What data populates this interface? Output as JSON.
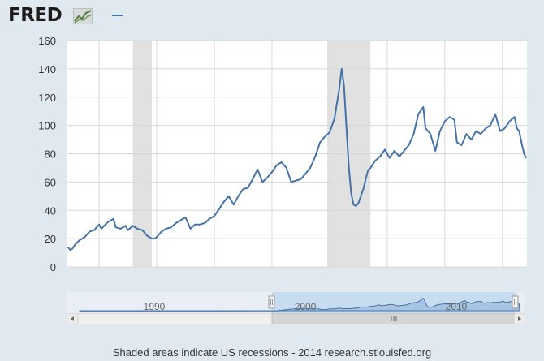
{
  "header": {
    "logo_text": "FRED",
    "logo_icon": "chart-logo-icon"
  },
  "colors": {
    "series": "#4572a7",
    "recession": "#e1e1e1",
    "plot_bg": "#ffffff",
    "page_bg": "#e1e9f0",
    "grid": "#d8d8d8",
    "navigator_fill": "#a6c5e3",
    "navigator_selected": "#c8dcef",
    "scrollbar": "#d5d5d5"
  },
  "chart_data": {
    "type": "line",
    "title": "",
    "xlabel": "",
    "ylabel": "",
    "xlim": [
      1998.9,
      2014.85
    ],
    "ylim": [
      0,
      160
    ],
    "yticks": [
      0,
      20,
      40,
      60,
      80,
      100,
      120,
      140,
      160
    ],
    "xticks": [
      2000,
      2002,
      2004,
      2006,
      2008,
      2010,
      2012,
      2014
    ],
    "grid": true,
    "legend": "top-left",
    "recessions": [
      [
        2001.17,
        2001.83
      ],
      [
        2007.92,
        2009.42
      ]
    ],
    "series": [
      {
        "x": [
          1998.92,
          1999.0,
          1999.08,
          1999.17,
          1999.33,
          1999.5,
          1999.67,
          1999.83,
          2000.0,
          2000.08,
          2000.17,
          2000.33,
          2000.5,
          2000.58,
          2000.75,
          2000.92,
          2001.0,
          2001.17,
          2001.33,
          2001.5,
          2001.67,
          2001.83,
          2001.92,
          2002.0,
          2002.17,
          2002.33,
          2002.5,
          2002.67,
          2002.83,
          2003.0,
          2003.17,
          2003.33,
          2003.5,
          2003.67,
          2003.83,
          2004.0,
          2004.17,
          2004.33,
          2004.5,
          2004.67,
          2004.83,
          2005.0,
          2005.17,
          2005.33,
          2005.5,
          2005.67,
          2005.83,
          2006.0,
          2006.17,
          2006.33,
          2006.5,
          2006.67,
          2006.83,
          2007.0,
          2007.17,
          2007.33,
          2007.5,
          2007.67,
          2007.83,
          2008.0,
          2008.17,
          2008.33,
          2008.42,
          2008.5,
          2008.58,
          2008.67,
          2008.75,
          2008.83,
          2008.92,
          2009.0,
          2009.17,
          2009.33,
          2009.42,
          2009.58,
          2009.75,
          2009.92,
          2010.08,
          2010.25,
          2010.42,
          2010.58,
          2010.75,
          2010.92,
          2011.08,
          2011.25,
          2011.33,
          2011.5,
          2011.67,
          2011.83,
          2012.0,
          2012.17,
          2012.33,
          2012.42,
          2012.58,
          2012.75,
          2012.92,
          2013.08,
          2013.25,
          2013.42,
          2013.58,
          2013.75,
          2013.92,
          2014.08,
          2014.25,
          2014.42,
          2014.5,
          2014.58,
          2014.67,
          2014.75,
          2014.83
        ],
        "values": [
          14,
          12,
          13,
          16,
          19,
          21,
          25,
          26,
          30,
          27,
          29,
          32,
          34,
          28,
          27,
          29,
          26,
          29,
          27,
          26,
          22,
          20,
          20,
          21,
          25,
          27,
          28,
          31,
          33,
          35,
          27,
          30,
          30,
          31,
          34,
          36,
          41,
          46,
          50,
          44,
          50,
          55,
          56,
          62,
          69,
          60,
          63,
          67,
          72,
          74,
          70,
          60,
          61,
          62,
          66,
          70,
          78,
          88,
          92,
          95,
          105,
          125,
          140,
          128,
          100,
          70,
          52,
          44,
          43,
          45,
          55,
          68,
          70,
          75,
          78,
          83,
          77,
          82,
          78,
          82,
          86,
          94,
          108,
          113,
          98,
          94,
          82,
          96,
          103,
          106,
          104,
          88,
          86,
          94,
          90,
          96,
          94,
          98,
          100,
          108,
          96,
          98,
          103,
          106,
          98,
          96,
          87,
          80,
          77
        ]
      }
    ],
    "navigator": {
      "labels": [
        "1990",
        "2000",
        "2010"
      ]
    }
  },
  "footer": {
    "text": "Shaded areas indicate US recessions - 2014 research.stlouisfed.org"
  }
}
